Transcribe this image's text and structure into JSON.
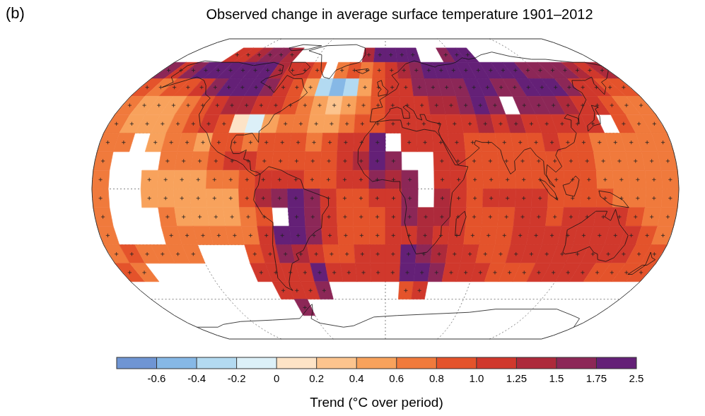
{
  "chart_data": {
    "type": "map",
    "title": "Observed change in average surface temperature 1901–2012",
    "annotations": [
      "(b)"
    ],
    "x": [
      -175,
      -165,
      -155,
      -145,
      -135,
      -125,
      -115,
      -105,
      -95,
      -85,
      -75,
      -65,
      -55,
      -45,
      -35,
      -25,
      -15,
      -5,
      5,
      15,
      25,
      35,
      45,
      55,
      65,
      75,
      85,
      95,
      105,
      115,
      125,
      135,
      145,
      155,
      165,
      175
    ],
    "y": [
      85,
      75,
      65,
      55,
      45,
      35,
      25,
      15,
      5,
      -5,
      -15,
      -25,
      -35,
      -45,
      -55,
      -65,
      -75,
      -85
    ],
    "cells": [
      [
        null,
        null,
        null,
        null,
        null,
        null,
        null,
        null,
        null,
        null,
        null,
        null,
        null,
        null,
        null,
        null,
        null,
        null,
        null,
        null,
        null,
        null,
        null,
        null,
        null,
        null,
        null,
        null,
        null,
        null,
        null,
        null,
        null,
        null,
        null,
        null
      ],
      [
        null,
        null,
        null,
        null,
        1.2,
        1.0,
        1.4,
        1.6,
        1.5,
        1.3,
        null,
        null,
        null,
        null,
        null,
        null,
        1.3,
        2.0,
        2.2,
        2.0,
        1.8,
        null,
        null,
        1.6,
        1.8,
        2.0,
        null,
        null,
        null,
        null,
        null,
        null,
        null,
        null,
        null,
        null
      ],
      [
        1.5,
        1.2,
        1.6,
        1.8,
        2.0,
        2.2,
        2.2,
        2.0,
        1.8,
        1.4,
        1.2,
        1.0,
        0.8,
        null,
        0.6,
        0.8,
        0.6,
        0.8,
        1.0,
        1.3,
        1.5,
        1.8,
        2.0,
        2.0,
        2.2,
        2.0,
        1.8,
        2.0,
        2.2,
        1.6,
        1.5,
        1.7,
        1.6,
        1.4,
        1.2,
        1.3
      ],
      [
        0.8,
        0.7,
        0.8,
        0.9,
        1.0,
        1.5,
        1.8,
        2.0,
        1.8,
        1.5,
        1.2,
        0.8,
        0.4,
        -0.4,
        -0.6,
        -0.3,
        0.4,
        0.8,
        1.0,
        1.2,
        1.5,
        1.5,
        1.6,
        1.6,
        1.8,
        1.8,
        1.7,
        1.5,
        1.8,
        2.2,
        2.0,
        1.6,
        1.2,
        1.0,
        0.9,
        0.8
      ],
      [
        0.6,
        0.5,
        0.5,
        0.4,
        0.6,
        0.8,
        1.2,
        1.4,
        1.3,
        1.2,
        1.0,
        0.8,
        0.6,
        0.4,
        0.3,
        0.5,
        0.6,
        0.8,
        1.0,
        1.2,
        1.2,
        1.3,
        1.4,
        1.6,
        1.8,
        1.7,
        null,
        1.5,
        1.7,
        1.6,
        1.4,
        1.2,
        1.0,
        0.8,
        0.7,
        0.6
      ],
      [
        0.6,
        0.5,
        0.4,
        0.5,
        0.6,
        0.8,
        1.0,
        0.8,
        0,
        -0.2,
        0.4,
        0.6,
        0.6,
        0.5,
        0.5,
        0.6,
        0.8,
        0.9,
        1.0,
        1.0,
        1.1,
        1.2,
        1.2,
        1.2,
        1.3,
        1.2,
        1.3,
        1.1,
        1.0,
        1.0,
        1.0,
        1.1,
        null,
        0.8,
        0.7,
        0.6
      ],
      [
        0.6,
        0.6,
        null,
        0.5,
        0.6,
        0.6,
        0.5,
        0.8,
        0.8,
        0.7,
        0.8,
        0.8,
        0.8,
        0.7,
        0.8,
        1.0,
        1.2,
        1.8,
        null,
        1.2,
        1.0,
        1.1,
        1.0,
        0.9,
        0.8,
        0.8,
        0.8,
        0.9,
        1.0,
        0.9,
        0.8,
        0.7,
        0.7,
        0.7,
        0.6,
        0.6
      ],
      [
        0.6,
        null,
        null,
        null,
        0.6,
        0.7,
        0.6,
        0.8,
        1.0,
        1.0,
        0.9,
        0.8,
        0.9,
        0.8,
        0.9,
        1.0,
        1.4,
        2.0,
        1.5,
        null,
        null,
        1.2,
        1.0,
        0.9,
        0.8,
        0.9,
        0.9,
        0.9,
        0.8,
        0.8,
        0.8,
        0.7,
        0.7,
        0.7,
        0.7,
        0.6
      ],
      [
        0.6,
        null,
        null,
        0.5,
        0.5,
        0.4,
        0.5,
        0.6,
        0.6,
        0.8,
        1.0,
        1.2,
        1.0,
        0.9,
        0.9,
        1.0,
        1.2,
        1.6,
        1.4,
        1.6,
        null,
        1.2,
        1.0,
        0.9,
        0.9,
        0.9,
        0.9,
        0.9,
        0.8,
        0.8,
        0.8,
        0.7,
        0.7,
        0.7,
        0.6,
        0.6
      ],
      [
        0.6,
        null,
        null,
        0.5,
        0.4,
        0.4,
        0.5,
        0.5,
        0.4,
        0.8,
        1.4,
        1.6,
        1.8,
        1.5,
        1.0,
        0.9,
        0.9,
        1.0,
        1.2,
        1.6,
        null,
        1.3,
        1.0,
        0.9,
        1.0,
        1.0,
        1.0,
        1.0,
        0.9,
        0.9,
        0.9,
        0.8,
        0.7,
        0.7,
        0.6,
        0.6
      ],
      [
        0.6,
        null,
        null,
        null,
        0.6,
        0.5,
        0.5,
        0.5,
        0.5,
        0.6,
        0.8,
        null,
        2.0,
        1.6,
        1.0,
        0.9,
        0.9,
        0.9,
        1.2,
        1.6,
        1.4,
        1.3,
        1.0,
        0.9,
        0.9,
        0.9,
        1.0,
        1.0,
        0.9,
        1.0,
        1.1,
        1.2,
        1.0,
        0.8,
        0.7,
        0.7
      ],
      [
        0.6,
        null,
        null,
        null,
        0.6,
        0.6,
        0.6,
        0.6,
        0.6,
        0.6,
        1.0,
        1.8,
        2.0,
        1.6,
        1.0,
        0.9,
        0.9,
        0.9,
        1.0,
        1.2,
        1.3,
        1.2,
        1.0,
        0.9,
        0.9,
        0.9,
        1.0,
        1.0,
        1.0,
        1.2,
        1.2,
        1.1,
        1.2,
        1.0,
        0.8,
        0.7
      ],
      [
        0.7,
        0.8,
        0.7,
        0.7,
        0.6,
        0.6,
        null,
        null,
        null,
        0.8,
        1.2,
        1.5,
        1.4,
        1.0,
        0.9,
        0.9,
        1.0,
        1.0,
        1.0,
        1.8,
        1.6,
        1.4,
        1.2,
        1.0,
        0.9,
        0.9,
        1.0,
        1.0,
        1.0,
        1.0,
        1.0,
        1.1,
        1.2,
        1.0,
        0.9,
        0.8
      ],
      [
        0.8,
        0.7,
        null,
        null,
        null,
        null,
        null,
        null,
        null,
        1.0,
        1.2,
        1.0,
        1.0,
        1.8,
        1.2,
        1.0,
        1.0,
        1.0,
        1.2,
        1.8,
        2.0,
        1.6,
        1.2,
        1.0,
        1.0,
        0.9,
        0.9,
        0.9,
        1.0,
        1.0,
        1.0,
        1.0,
        0.9,
        0.9,
        0.8,
        0.8
      ],
      [
        null,
        null,
        null,
        null,
        null,
        null,
        null,
        null,
        null,
        null,
        1.0,
        1.2,
        1.0,
        1.5,
        null,
        null,
        null,
        null,
        null,
        0.8,
        1.2,
        null,
        null,
        null,
        null,
        null,
        null,
        null,
        null,
        null,
        null,
        null,
        null,
        null,
        null,
        null
      ],
      [
        null,
        null,
        null,
        null,
        null,
        null,
        null,
        null,
        null,
        null,
        null,
        1.5,
        null,
        null,
        null,
        null,
        null,
        null,
        null,
        null,
        null,
        null,
        null,
        null,
        null,
        null,
        null,
        null,
        null,
        null,
        null,
        null,
        null,
        null,
        null,
        null
      ],
      [
        null,
        null,
        null,
        null,
        null,
        null,
        null,
        null,
        null,
        null,
        null,
        null,
        null,
        null,
        null,
        null,
        null,
        null,
        null,
        null,
        null,
        null,
        null,
        null,
        null,
        null,
        null,
        null,
        null,
        null,
        null,
        null,
        null,
        null,
        null,
        null
      ],
      [
        null,
        null,
        null,
        null,
        null,
        null,
        null,
        null,
        null,
        null,
        null,
        null,
        null,
        null,
        null,
        null,
        null,
        null,
        null,
        null,
        null,
        null,
        null,
        null,
        null,
        null,
        null,
        null,
        null,
        null,
        null,
        null,
        null,
        null,
        null,
        null
      ]
    ],
    "not_significant": [
      [
        -45,
        55
      ],
      [
        -35,
        55
      ],
      [
        -25,
        55
      ],
      [
        -95,
        35
      ],
      [
        -85,
        35
      ],
      [
        -75,
        35
      ]
    ],
    "marker": "cross",
    "xlim": [
      -180,
      180
    ],
    "ylim": [
      -90,
      90
    ],
    "xticks": [
      -120,
      -60,
      0,
      60,
      120
    ],
    "yticks": [
      -60,
      -30,
      0,
      30,
      60
    ],
    "grid": true,
    "tick_labels": false,
    "colorbar": {
      "label": "Trend (°C over period)",
      "range": [
        -0.8,
        2.5
      ],
      "ticks": [
        -0.6,
        -0.4,
        -0.2,
        0,
        0.2,
        0.4,
        0.6,
        0.8,
        {
          "value": 1,
          "label": "1.0"
        },
        1.25,
        1.5,
        1.75,
        2.5
      ],
      "colors": [
        "#6f95d3",
        "#86b8e6",
        "#b3daf1",
        "#dcf0f8",
        "#fde3c6",
        "#fcc48e",
        "#f8a25c",
        "#f07a3c",
        "#e4532b",
        "#d0382c",
        "#ad2a3b",
        "#8c2757",
        "#642077"
      ]
    }
  }
}
